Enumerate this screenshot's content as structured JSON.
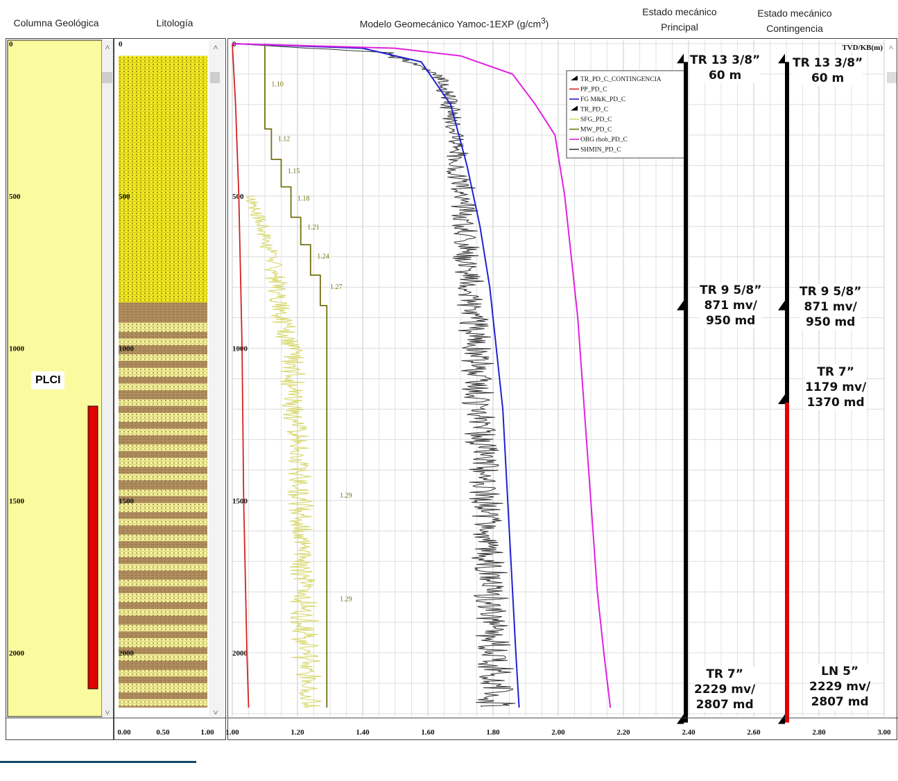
{
  "headers": {
    "col_geologica": "Columna Geológica",
    "litologia": "Litología",
    "modelo": "Modelo Geomecánico Yamoc-1EXP (g/cm³)",
    "em_principal": [
      "Estado mecánico",
      "Principal"
    ],
    "em_contingencia": [
      "Estado mecánico",
      "Contingencia"
    ]
  },
  "formation_label": "PLCI",
  "depth_ticks": [
    "0",
    "500",
    "1000",
    "1500",
    "2000"
  ],
  "tvd_label": "TVD/KB(m)",
  "lith_scale": [
    "0.00",
    "0.50",
    "1.00"
  ],
  "colors": {
    "pp": "#d42020",
    "fg": "#2020d0",
    "obg": "#e020e0",
    "shmin": "#333333",
    "sfg": "#d8d870",
    "mw": "#707010",
    "col_yellow": "#fafa9e",
    "lith_yellow": "#f5ea1f",
    "lith_brown": "#b08d5e",
    "casing_black": "#000000",
    "casing_red": "#e00000"
  },
  "legend": [
    {
      "name": "TR_PD_C_CONTINGENCIA",
      "style": "shoe"
    },
    {
      "name": "PP_PD_C",
      "style": "pp"
    },
    {
      "name": "FG M&K_PD_C",
      "style": "fg"
    },
    {
      "name": "TR_PD_C",
      "style": "shoe"
    },
    {
      "name": "SFG_PD_C",
      "style": "sfg"
    },
    {
      "name": "MW_PD_C",
      "style": "mw"
    },
    {
      "name": "OBG rhob_PD_C",
      "style": "obg"
    },
    {
      "name": "SHMIN_PD_C",
      "style": "shmin"
    }
  ],
  "casing_principal": [
    [
      "TR 13 3/8”",
      "60 m"
    ],
    [
      "TR 9 5/8”",
      "871 mv/",
      "950 md"
    ],
    [
      "TR 7”",
      "2229 mv/",
      "2807 md"
    ]
  ],
  "casing_contingencia": [
    [
      "TR 13 3/8”",
      "60 m"
    ],
    [
      "TR 9 5/8”",
      "871 mv/",
      "950 md"
    ],
    [
      "TR 7”",
      "1179 mv/",
      "1370 md"
    ],
    [
      "LN 5”",
      "2229 mv/",
      "2807 md"
    ]
  ],
  "chart_data": {
    "type": "line",
    "title": "Modelo Geomecánico Yamoc-1EXP (g/cm³)",
    "xlabel": "",
    "ylabel": "TVD/KB(m)",
    "xlim": [
      1.0,
      3.0
    ],
    "ylim": [
      0,
      2200
    ],
    "y_inverted": true,
    "x_ticks": [
      "1.00",
      "1.20",
      "1.40",
      "1.60",
      "1.80",
      "2.00",
      "2.20",
      "2.40",
      "2.60",
      "2.80",
      "3.00"
    ],
    "y_ticks": [
      0,
      500,
      1000,
      1500,
      2000
    ],
    "grid": true,
    "legend_position": "top-right",
    "series": [
      {
        "name": "PP_PD_C",
        "points": [
          [
            1.0,
            0
          ],
          [
            1.01,
            200
          ],
          [
            1.02,
            500
          ],
          [
            1.03,
            1000
          ],
          [
            1.035,
            1500
          ],
          [
            1.045,
            2000
          ],
          [
            1.05,
            2180
          ]
        ]
      },
      {
        "name": "FG M&K_PD_C",
        "points": [
          [
            1.0,
            0
          ],
          [
            1.4,
            15
          ],
          [
            1.58,
            60
          ],
          [
            1.67,
            200
          ],
          [
            1.72,
            400
          ],
          [
            1.76,
            600
          ],
          [
            1.79,
            800
          ],
          [
            1.81,
            1000
          ],
          [
            1.83,
            1200
          ],
          [
            1.84,
            1400
          ],
          [
            1.85,
            1600
          ],
          [
            1.86,
            1800
          ],
          [
            1.87,
            2000
          ],
          [
            1.88,
            2180
          ]
        ]
      },
      {
        "name": "OBG rhob_PD_C",
        "points": [
          [
            1.0,
            0
          ],
          [
            1.5,
            15
          ],
          [
            1.7,
            40
          ],
          [
            1.86,
            100
          ],
          [
            1.93,
            200
          ],
          [
            1.99,
            300
          ],
          [
            2.02,
            500
          ],
          [
            2.04,
            700
          ],
          [
            2.06,
            900
          ],
          [
            2.08,
            1200
          ],
          [
            2.1,
            1500
          ],
          [
            2.12,
            1800
          ],
          [
            2.14,
            2000
          ],
          [
            2.16,
            2180
          ]
        ]
      },
      {
        "name": "MW_PD_C",
        "points": [
          [
            1.1,
            0
          ],
          [
            1.1,
            280
          ],
          [
            1.12,
            280
          ],
          [
            1.12,
            380
          ],
          [
            1.15,
            380
          ],
          [
            1.15,
            470
          ],
          [
            1.18,
            470
          ],
          [
            1.18,
            570
          ],
          [
            1.21,
            570
          ],
          [
            1.21,
            660
          ],
          [
            1.24,
            660
          ],
          [
            1.24,
            760
          ],
          [
            1.27,
            760
          ],
          [
            1.27,
            860
          ],
          [
            1.29,
            860
          ],
          [
            1.29,
            2180
          ]
        ]
      },
      {
        "name": "SHMIN_PD_C",
        "envelope": [
          [
            0,
            1.0,
            1.0
          ],
          [
            30,
            1.4,
            1.5
          ],
          [
            100,
            1.58,
            1.66
          ],
          [
            200,
            1.59,
            1.7
          ],
          [
            500,
            1.61,
            1.75
          ],
          [
            1000,
            1.62,
            1.8
          ],
          [
            1500,
            1.66,
            1.83
          ],
          [
            2000,
            1.67,
            1.86
          ],
          [
            2180,
            1.66,
            1.87
          ]
        ]
      },
      {
        "name": "SFG_PD_C",
        "envelope": [
          [
            500,
            1.0,
            1.08
          ],
          [
            700,
            1.05,
            1.15
          ],
          [
            1000,
            1.08,
            1.22
          ],
          [
            1500,
            1.12,
            1.25
          ],
          [
            2000,
            1.12,
            1.27
          ],
          [
            2180,
            1.15,
            1.28
          ]
        ]
      }
    ],
    "annotations": [
      {
        "text": "1.10",
        "x": 1.12,
        "y": 140
      },
      {
        "text": "1.12",
        "x": 1.14,
        "y": 320
      },
      {
        "text": "1.15",
        "x": 1.17,
        "y": 425
      },
      {
        "text": "1.18",
        "x": 1.2,
        "y": 515
      },
      {
        "text": "1.21",
        "x": 1.23,
        "y": 610
      },
      {
        "text": "1.24",
        "x": 1.26,
        "y": 705
      },
      {
        "text": "1.27",
        "x": 1.3,
        "y": 805
      },
      {
        "text": "1.29",
        "x": 1.33,
        "y": 1490
      },
      {
        "text": "1.29",
        "x": 1.33,
        "y": 1830
      }
    ],
    "casing_shoes": {
      "principal": [
        60,
        871,
        2229
      ],
      "contingencia": [
        60,
        871,
        1179,
        2229
      ]
    }
  }
}
